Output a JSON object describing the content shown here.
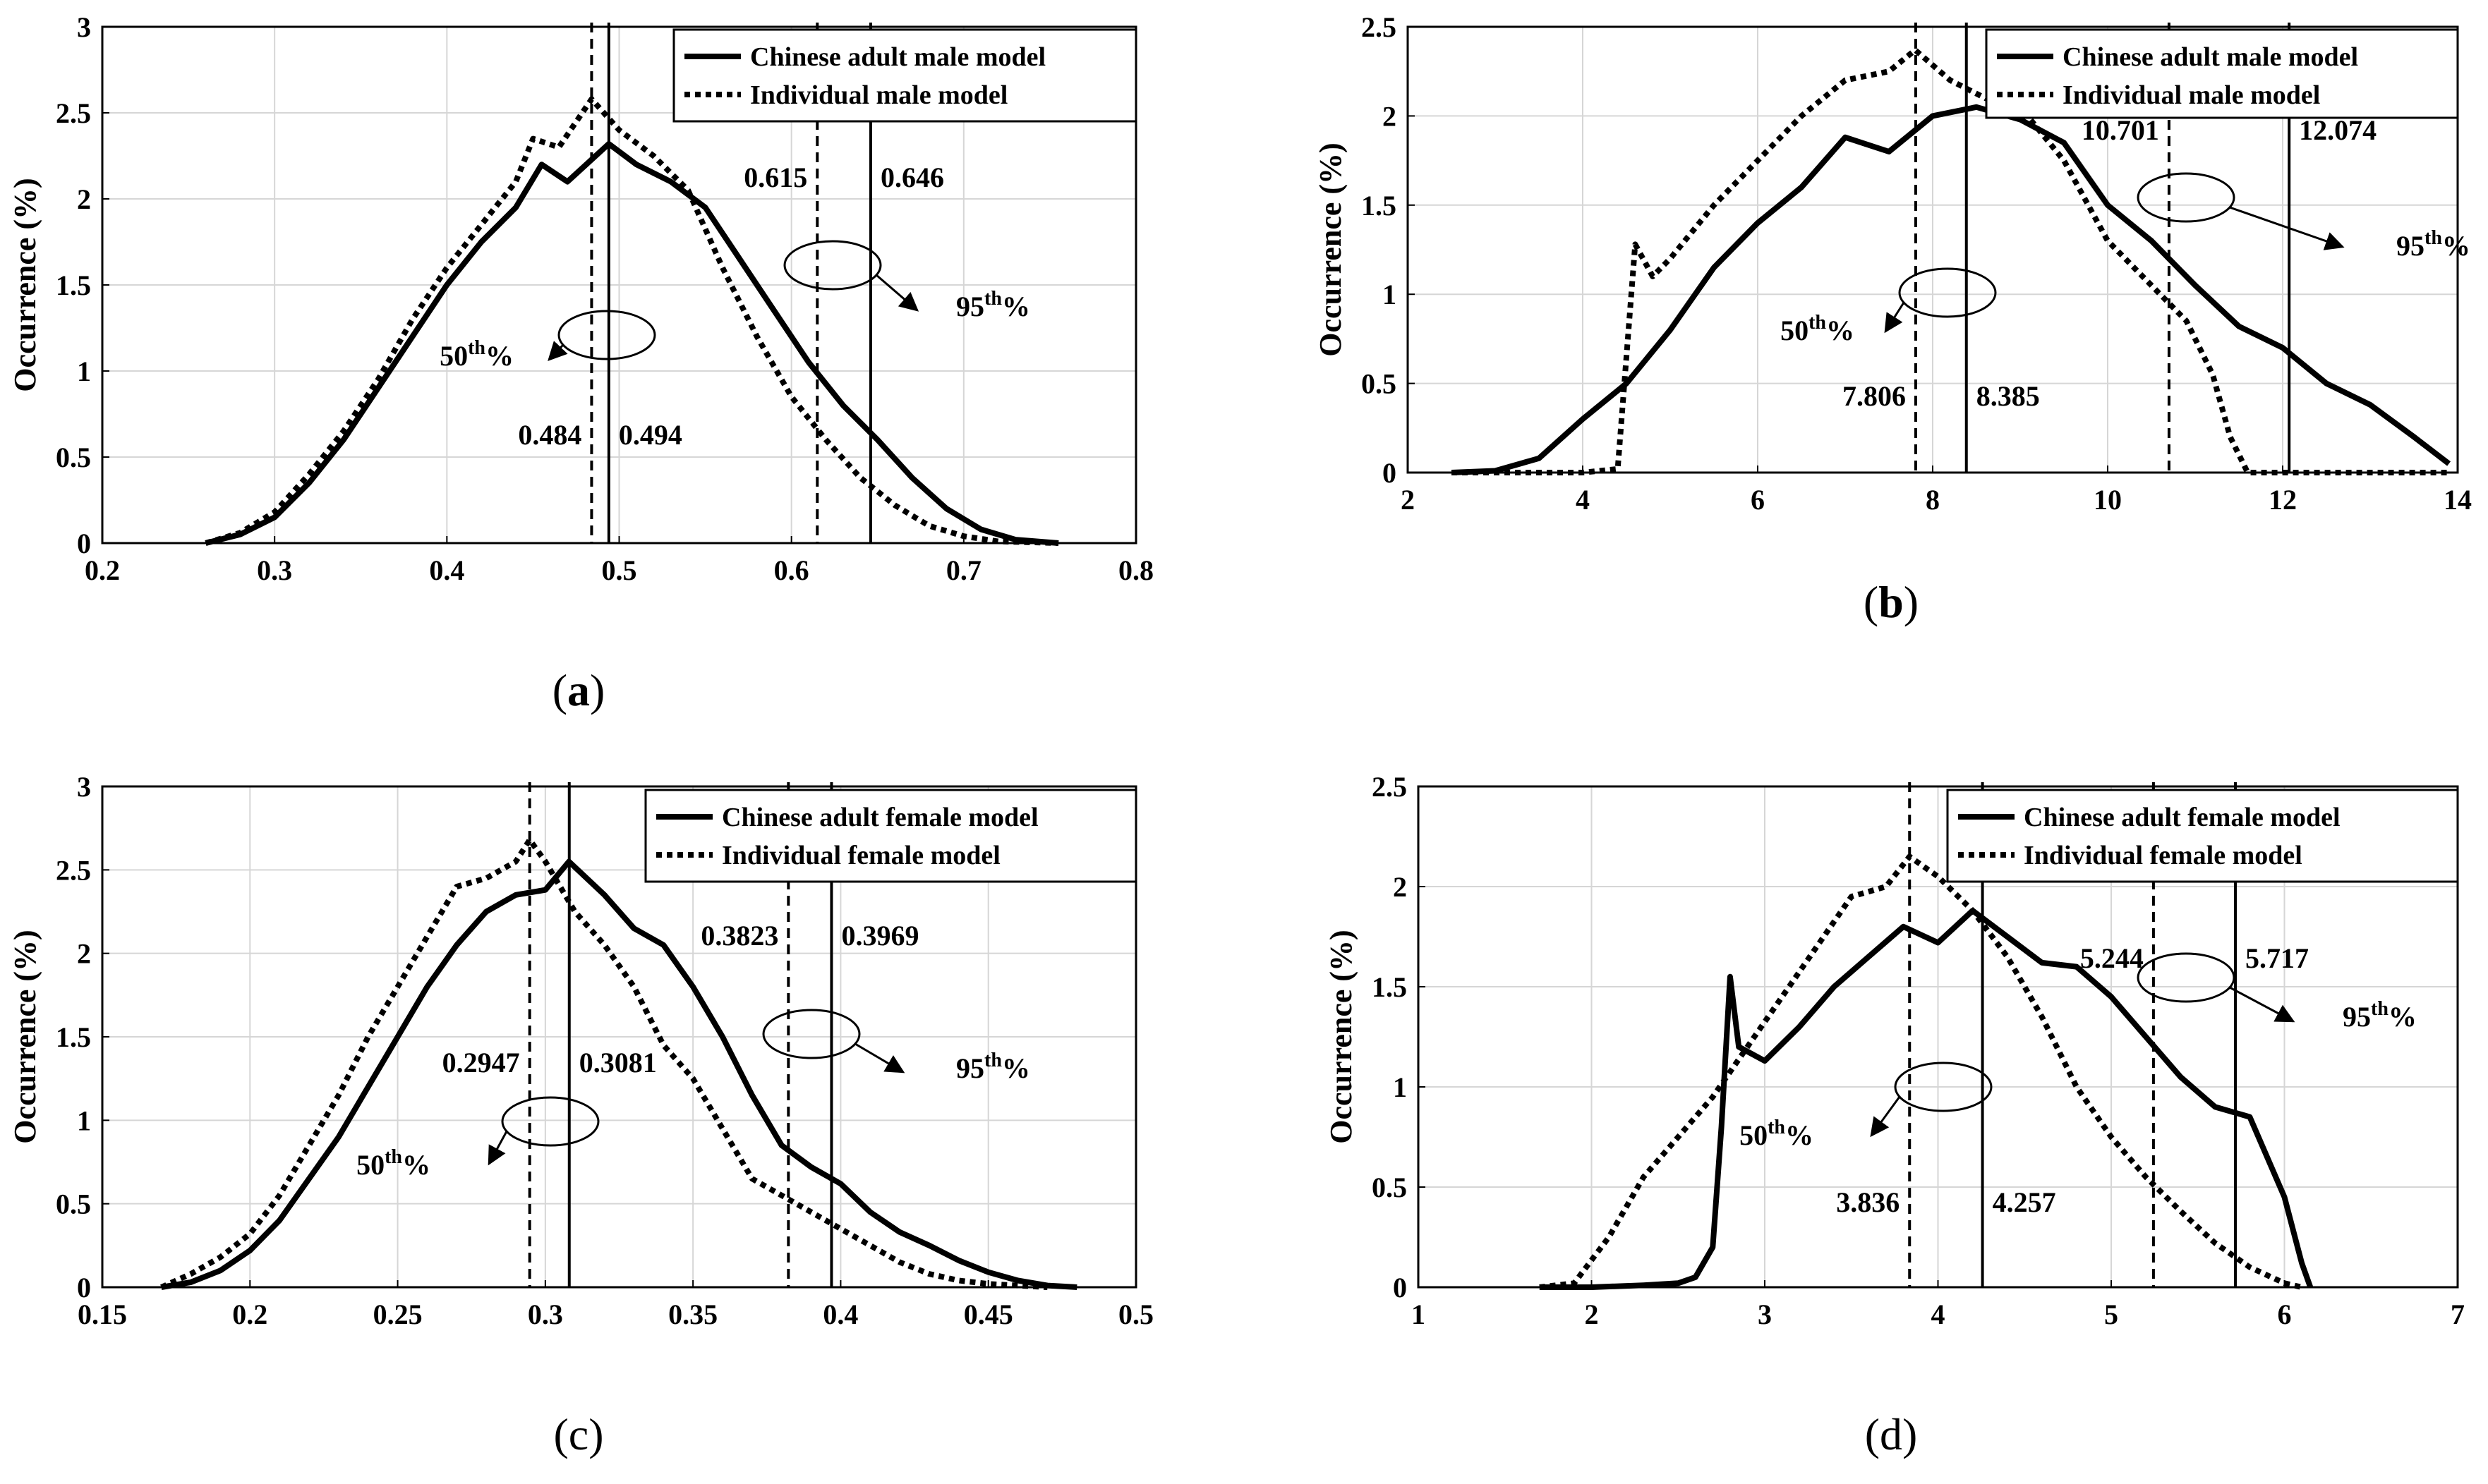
{
  "figure": {
    "panels": [
      {
        "label": "(a)",
        "legend": {
          "solid": "Chinese adult male model",
          "dotted": "Individual male model"
        },
        "annotations": {
          "p50": {
            "label": "50th%",
            "dotted": "0.484",
            "solid": "0.494"
          },
          "p95": {
            "label": "95th%",
            "dotted": "0.615",
            "solid": "0.646"
          }
        }
      },
      {
        "label": "(b)",
        "legend": {
          "solid": "Chinese adult male model",
          "dotted": "Individual male model"
        },
        "annotations": {
          "p50": {
            "label": "50th%",
            "dotted": "7.806",
            "solid": "8.385"
          },
          "p95": {
            "label": "95th%",
            "dotted": "10.701",
            "solid": "12.074"
          }
        }
      },
      {
        "label": "(c)",
        "legend": {
          "solid": "Chinese adult female model",
          "dotted": "Individual female model"
        },
        "annotations": {
          "p50": {
            "label": "50th%",
            "dotted": "0.2947",
            "solid": "0.3081"
          },
          "p95": {
            "label": "95th%",
            "dotted": "0.3823",
            "solid": "0.3969"
          }
        }
      },
      {
        "label": "(d)",
        "legend": {
          "solid": "Chinese adult female model",
          "dotted": "Individual female model"
        },
        "annotations": {
          "p50": {
            "label": "50th%",
            "dotted": "3.836",
            "solid": "4.257"
          },
          "p95": {
            "label": "95th%",
            "dotted": "5.244",
            "solid": "5.717"
          }
        }
      }
    ]
  },
  "chart_data": [
    {
      "type": "line",
      "title": "(a)",
      "xlabel": "",
      "ylabel": "Occurrence (%)",
      "xlim": [
        0.2,
        0.8
      ],
      "ylim": [
        0,
        3
      ],
      "xticks": [
        "0.2",
        "0.3",
        "0.4",
        "0.5",
        "0.6",
        "0.7",
        "0.8"
      ],
      "yticks": [
        "0",
        "0.5",
        "1",
        "1.5",
        "2",
        "2.5",
        "3"
      ],
      "grid": true,
      "legend_position": "top-right",
      "vlines": [
        {
          "x": 0.484,
          "style": "dotted",
          "label": "0.484"
        },
        {
          "x": 0.494,
          "style": "solid",
          "label": "0.494"
        },
        {
          "x": 0.615,
          "style": "dotted",
          "label": "0.615"
        },
        {
          "x": 0.646,
          "style": "solid",
          "label": "0.646"
        }
      ],
      "series": [
        {
          "name": "Chinese adult male model",
          "style": "solid",
          "x": [
            0.26,
            0.28,
            0.3,
            0.32,
            0.34,
            0.36,
            0.38,
            0.4,
            0.42,
            0.44,
            0.455,
            0.47,
            0.494,
            0.51,
            0.53,
            0.55,
            0.57,
            0.59,
            0.61,
            0.63,
            0.65,
            0.67,
            0.69,
            0.71,
            0.73,
            0.755
          ],
          "y": [
            0,
            0.05,
            0.15,
            0.35,
            0.6,
            0.9,
            1.2,
            1.5,
            1.75,
            1.95,
            2.2,
            2.1,
            2.32,
            2.2,
            2.1,
            1.95,
            1.65,
            1.35,
            1.05,
            0.8,
            0.6,
            0.38,
            0.2,
            0.08,
            0.02,
            0
          ]
        },
        {
          "name": "Individual male model",
          "style": "dotted",
          "x": [
            0.26,
            0.28,
            0.3,
            0.32,
            0.34,
            0.36,
            0.38,
            0.4,
            0.42,
            0.44,
            0.45,
            0.465,
            0.484,
            0.5,
            0.52,
            0.54,
            0.56,
            0.58,
            0.6,
            0.62,
            0.64,
            0.66,
            0.68,
            0.7,
            0.72,
            0.755
          ],
          "y": [
            0,
            0.06,
            0.18,
            0.4,
            0.65,
            0.95,
            1.3,
            1.6,
            1.85,
            2.1,
            2.35,
            2.3,
            2.58,
            2.4,
            2.25,
            2.05,
            1.6,
            1.2,
            0.85,
            0.6,
            0.38,
            0.22,
            0.1,
            0.04,
            0.01,
            0
          ]
        }
      ]
    },
    {
      "type": "line",
      "title": "(b)",
      "xlabel": "",
      "ylabel": "Occurrence (%)",
      "xlim": [
        2,
        14
      ],
      "ylim": [
        0,
        2.5
      ],
      "xticks": [
        "2",
        "4",
        "6",
        "8",
        "10",
        "12",
        "14"
      ],
      "yticks": [
        "0",
        "0.5",
        "1",
        "1.5",
        "2",
        "2.5"
      ],
      "grid": true,
      "legend_position": "top-right",
      "vlines": [
        {
          "x": 7.806,
          "style": "dotted",
          "label": "7.806"
        },
        {
          "x": 8.385,
          "style": "solid",
          "label": "8.385"
        },
        {
          "x": 10.701,
          "style": "dotted",
          "label": "10.701"
        },
        {
          "x": 12.074,
          "style": "solid",
          "label": "12.074"
        }
      ],
      "series": [
        {
          "name": "Chinese adult male model",
          "style": "solid",
          "x": [
            2.5,
            3,
            3.5,
            4,
            4.5,
            5,
            5.5,
            6,
            6.5,
            7,
            7.5,
            8,
            8.5,
            9,
            9.5,
            10,
            10.5,
            11,
            11.5,
            12,
            12.5,
            13,
            13.5,
            13.9
          ],
          "y": [
            0,
            0.01,
            0.08,
            0.3,
            0.5,
            0.8,
            1.15,
            1.4,
            1.6,
            1.88,
            1.8,
            2.0,
            2.05,
            1.98,
            1.85,
            1.5,
            1.3,
            1.05,
            0.82,
            0.7,
            0.5,
            0.38,
            0.2,
            0.05
          ]
        },
        {
          "name": "Individual male model",
          "style": "dotted",
          "x": [
            2.5,
            3,
            3.5,
            4,
            4.4,
            4.6,
            4.8,
            5,
            5.5,
            6,
            6.5,
            7,
            7.5,
            7.8,
            8.2,
            8.6,
            9,
            9.5,
            10,
            10.5,
            10.9,
            11.2,
            11.4,
            11.6,
            12,
            13,
            13.9
          ],
          "y": [
            0,
            0,
            0,
            0,
            0.02,
            1.28,
            1.1,
            1.2,
            1.5,
            1.75,
            2.0,
            2.2,
            2.25,
            2.37,
            2.2,
            2.1,
            2.05,
            1.75,
            1.3,
            1.05,
            0.85,
            0.55,
            0.2,
            0,
            0,
            0,
            0
          ]
        }
      ]
    },
    {
      "type": "line",
      "title": "(c)",
      "xlabel": "",
      "ylabel": "Occurrence (%)",
      "xlim": [
        0.15,
        0.5
      ],
      "ylim": [
        0,
        3
      ],
      "xticks": [
        "0.15",
        "0.2",
        "0.25",
        "0.3",
        "0.35",
        "0.4",
        "0.45",
        "0.5"
      ],
      "yticks": [
        "0",
        "0.5",
        "1",
        "1.5",
        "2",
        "2.5",
        "3"
      ],
      "grid": true,
      "legend_position": "top-right",
      "vlines": [
        {
          "x": 0.2947,
          "style": "dotted",
          "label": "0.2947"
        },
        {
          "x": 0.3081,
          "style": "solid",
          "label": "0.3081"
        },
        {
          "x": 0.3823,
          "style": "dotted",
          "label": "0.3823"
        },
        {
          "x": 0.3969,
          "style": "solid",
          "label": "0.3969"
        }
      ],
      "series": [
        {
          "name": "Chinese adult female model",
          "style": "solid",
          "x": [
            0.17,
            0.18,
            0.19,
            0.2,
            0.21,
            0.22,
            0.23,
            0.24,
            0.25,
            0.26,
            0.27,
            0.28,
            0.29,
            0.3,
            0.308,
            0.32,
            0.33,
            0.34,
            0.35,
            0.36,
            0.37,
            0.38,
            0.39,
            0.4,
            0.41,
            0.42,
            0.43,
            0.44,
            0.45,
            0.46,
            0.47,
            0.48
          ],
          "y": [
            0,
            0.03,
            0.1,
            0.22,
            0.4,
            0.65,
            0.9,
            1.2,
            1.5,
            1.8,
            2.05,
            2.25,
            2.35,
            2.38,
            2.55,
            2.35,
            2.15,
            2.05,
            1.8,
            1.5,
            1.15,
            0.85,
            0.72,
            0.62,
            0.45,
            0.33,
            0.25,
            0.16,
            0.09,
            0.04,
            0.01,
            0
          ]
        },
        {
          "name": "Individual female model",
          "style": "dotted",
          "x": [
            0.17,
            0.18,
            0.19,
            0.2,
            0.21,
            0.22,
            0.23,
            0.24,
            0.25,
            0.26,
            0.27,
            0.28,
            0.29,
            0.2947,
            0.3,
            0.31,
            0.32,
            0.33,
            0.34,
            0.35,
            0.36,
            0.37,
            0.38,
            0.39,
            0.4,
            0.41,
            0.42,
            0.43,
            0.44,
            0.45,
            0.46,
            0.47
          ],
          "y": [
            0,
            0.08,
            0.18,
            0.32,
            0.55,
            0.85,
            1.15,
            1.5,
            1.8,
            2.1,
            2.4,
            2.45,
            2.55,
            2.68,
            2.55,
            2.25,
            2.05,
            1.8,
            1.45,
            1.25,
            0.95,
            0.65,
            0.55,
            0.45,
            0.35,
            0.25,
            0.15,
            0.08,
            0.04,
            0.02,
            0.01,
            0
          ]
        }
      ]
    },
    {
      "type": "line",
      "title": "(d)",
      "xlabel": "",
      "ylabel": "Occurrence (%)",
      "xlim": [
        1,
        7
      ],
      "ylim": [
        0,
        2.5
      ],
      "xticks": [
        "1",
        "2",
        "3",
        "4",
        "5",
        "6",
        "7"
      ],
      "yticks": [
        "0",
        "0.5",
        "1",
        "1.5",
        "2",
        "2.5"
      ],
      "grid": true,
      "legend_position": "top-right",
      "vlines": [
        {
          "x": 3.836,
          "style": "dotted",
          "label": "3.836"
        },
        {
          "x": 4.257,
          "style": "solid",
          "label": "4.257"
        },
        {
          "x": 5.244,
          "style": "dotted",
          "label": "5.244"
        },
        {
          "x": 5.717,
          "style": "solid",
          "label": "5.717"
        }
      ],
      "series": [
        {
          "name": "Chinese adult female model",
          "style": "solid",
          "x": [
            1.7,
            2,
            2.3,
            2.5,
            2.6,
            2.7,
            2.75,
            2.8,
            2.85,
            3,
            3.2,
            3.4,
            3.6,
            3.8,
            4,
            4.2,
            4.4,
            4.6,
            4.8,
            5,
            5.2,
            5.4,
            5.6,
            5.8,
            6,
            6.1,
            6.15
          ],
          "y": [
            0,
            0,
            0.01,
            0.02,
            0.05,
            0.2,
            0.8,
            1.55,
            1.2,
            1.13,
            1.3,
            1.5,
            1.65,
            1.8,
            1.72,
            1.88,
            1.75,
            1.62,
            1.6,
            1.45,
            1.25,
            1.05,
            0.9,
            0.85,
            0.45,
            0.12,
            0
          ]
        },
        {
          "name": "Individual female model",
          "style": "dotted",
          "x": [
            1.7,
            1.9,
            2.1,
            2.3,
            2.5,
            2.7,
            2.9,
            3.1,
            3.3,
            3.5,
            3.7,
            3.836,
            4.0,
            4.2,
            4.4,
            4.6,
            4.8,
            5.0,
            5.2,
            5.4,
            5.6,
            5.8,
            6.0,
            6.1
          ],
          "y": [
            0,
            0.02,
            0.25,
            0.55,
            0.75,
            0.95,
            1.2,
            1.45,
            1.7,
            1.95,
            2.0,
            2.15,
            2.05,
            1.88,
            1.65,
            1.35,
            1.0,
            0.75,
            0.55,
            0.38,
            0.22,
            0.1,
            0.02,
            0
          ]
        }
      ]
    }
  ]
}
